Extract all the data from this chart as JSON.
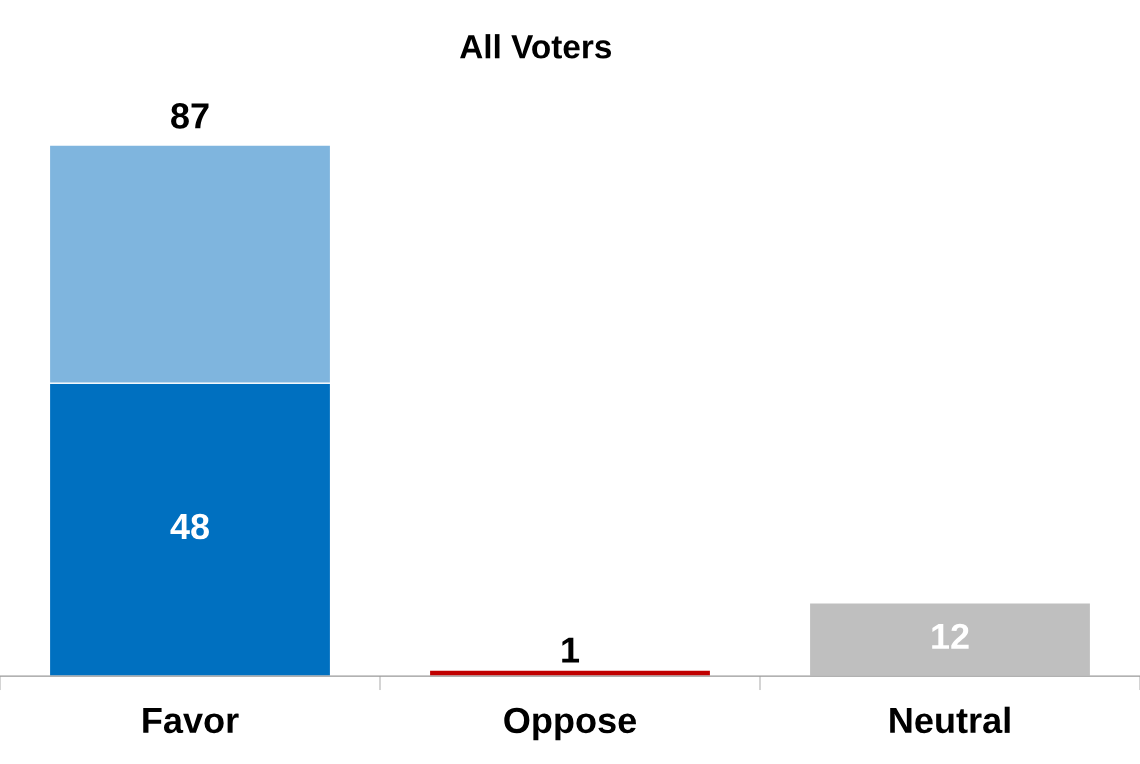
{
  "chart_data": {
    "type": "bar",
    "title": "All Voters",
    "categories": [
      "Favor",
      "Oppose",
      "Neutral"
    ],
    "stacked": true,
    "series": [
      {
        "colors": [
          "#0070c0",
          "#c00000",
          "#bfbfbf"
        ],
        "values": [
          48,
          1,
          12
        ],
        "value_labels": [
          "48",
          "1",
          "12"
        ]
      },
      {
        "color": "#7fb5de",
        "values": [
          39,
          null,
          null
        ]
      }
    ],
    "totals": [
      "87",
      null,
      null
    ],
    "grid": false,
    "legend": false,
    "tick_labels": "x"
  }
}
